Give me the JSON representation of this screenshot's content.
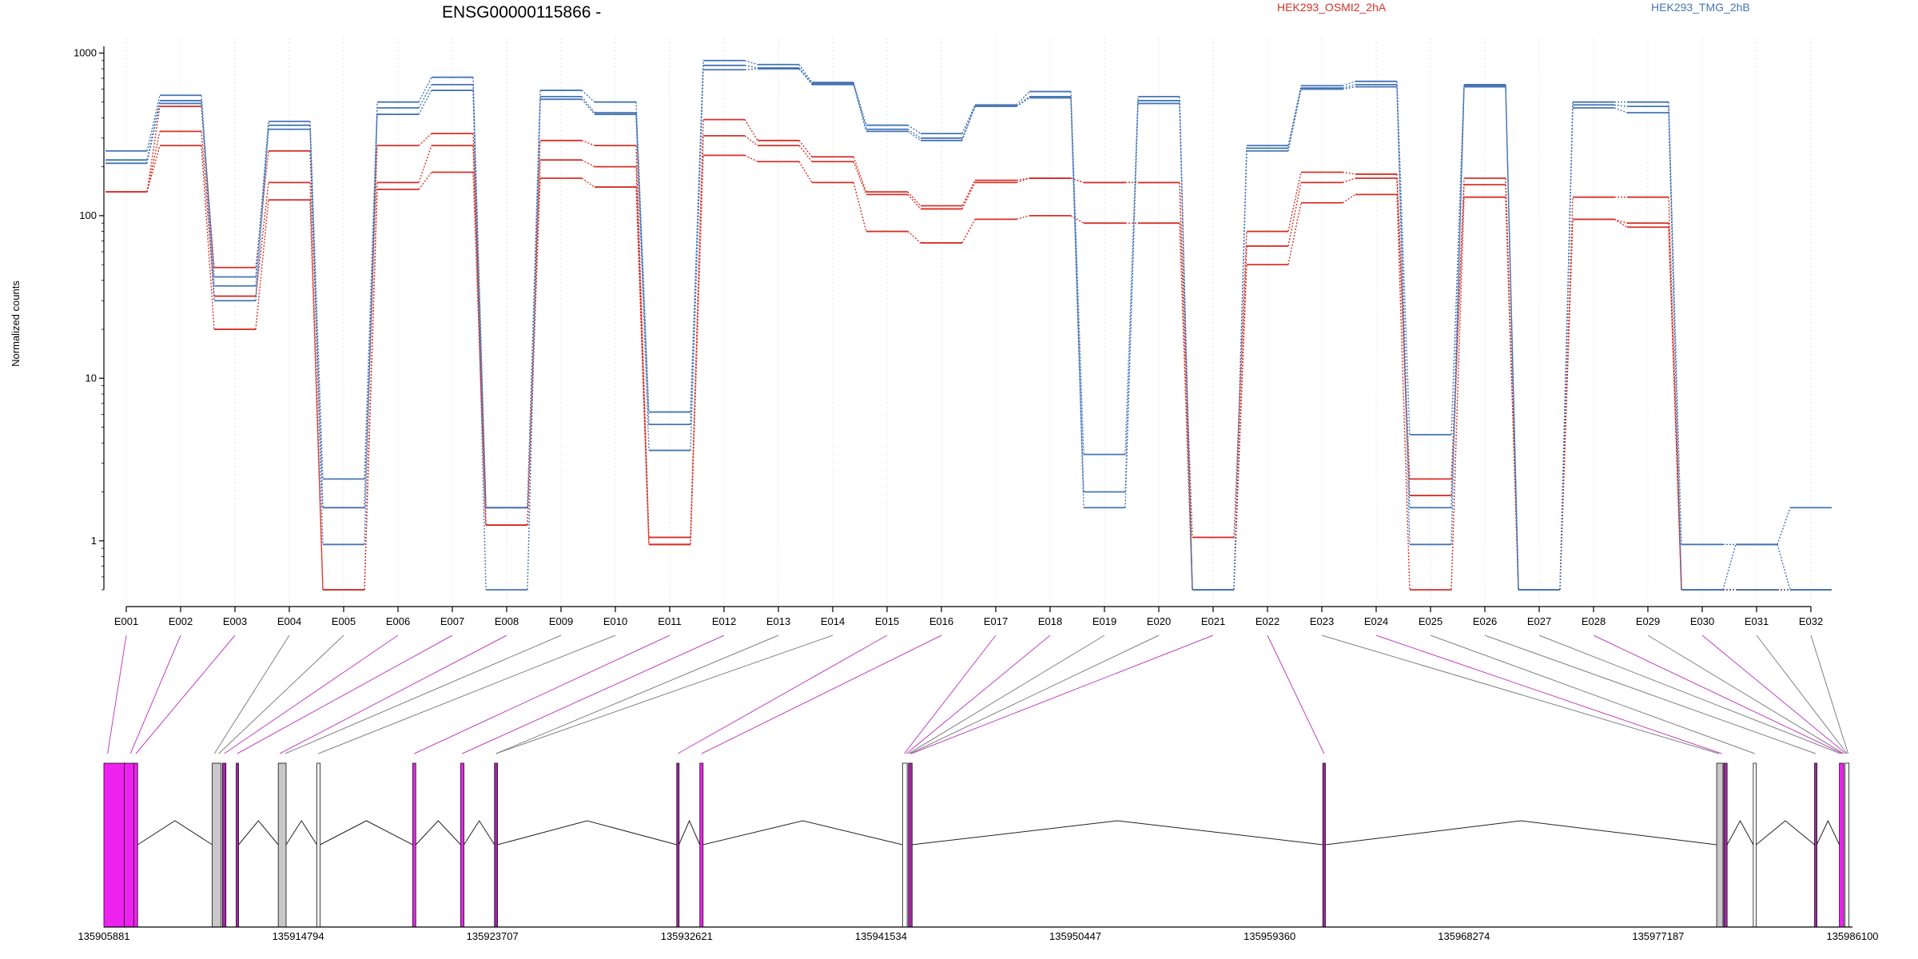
{
  "chart_data": {
    "type": "line",
    "title": "ENSG00000115866 -",
    "ylabel": "Normalized counts",
    "yscale": "log",
    "y_ticks": [
      {
        "value": 1000,
        "label": "1000"
      },
      {
        "value": 100,
        "label": "100"
      },
      {
        "value": 10,
        "label": "10"
      },
      {
        "value": 1,
        "label": "1"
      }
    ],
    "ylim": [
      0.5,
      1100
    ],
    "grid": "vertical dotted at exon centres",
    "legend_position": "top",
    "legend": [
      {
        "label": "HEK293_OSMI2_2hA",
        "color": "#d73027"
      },
      {
        "label": "HEK293_TMG_2hB",
        "color": "#4575b4"
      }
    ],
    "exons": [
      "E001",
      "E002",
      "E003",
      "E004",
      "E005",
      "E006",
      "E007",
      "E008",
      "E009",
      "E010",
      "E011",
      "E012",
      "E013",
      "E014",
      "E015",
      "E016",
      "E017",
      "E018",
      "E019",
      "E020",
      "E021",
      "E022",
      "E023",
      "E024",
      "E025",
      "E026",
      "E027",
      "E028",
      "E029",
      "E030",
      "E031",
      "E032"
    ],
    "series": [
      {
        "group": "HEK293_OSMI2_2hA",
        "color": "#d73027",
        "values": [
          140,
          470,
          48,
          250,
          1.6,
          270,
          320,
          1.6,
          290,
          270,
          1.05,
          390,
          290,
          230,
          140,
          115,
          165,
          170,
          160,
          160,
          1.05,
          80,
          185,
          180,
          2.4,
          170,
          0.5,
          130,
          130,
          0.5,
          0.5,
          0.5
        ]
      },
      {
        "group": "HEK293_OSMI2_2hA",
        "color": "#d73027",
        "values": [
          140,
          330,
          32,
          160,
          0.5,
          160,
          270,
          1.25,
          220,
          200,
          0.95,
          310,
          270,
          215,
          135,
          110,
          160,
          170,
          160,
          160,
          0.5,
          65,
          160,
          170,
          1.9,
          155,
          0.5,
          95,
          90,
          0.5,
          0.5,
          0.5
        ]
      },
      {
        "group": "HEK293_OSMI2_2hA",
        "color": "#d73027",
        "values": [
          140,
          270,
          20,
          125,
          0.5,
          145,
          185,
          1.25,
          170,
          150,
          0.95,
          235,
          215,
          160,
          80,
          68,
          95,
          100,
          90,
          90,
          0.5,
          50,
          120,
          135,
          0.5,
          130,
          0.5,
          95,
          85,
          0.5,
          0.5,
          0.5
        ]
      },
      {
        "group": "HEK293_TMG_2hB",
        "color": "#4575b4",
        "values": [
          250,
          550,
          42,
          380,
          2.4,
          500,
          710,
          1.6,
          590,
          500,
          6.2,
          900,
          850,
          660,
          360,
          320,
          480,
          580,
          3.4,
          540,
          0.5,
          270,
          630,
          670,
          4.5,
          640,
          0.5,
          500,
          500,
          0.95,
          0.95,
          1.6
        ]
      },
      {
        "group": "HEK293_TMG_2hB",
        "color": "#4575b4",
        "values": [
          220,
          510,
          37,
          360,
          1.6,
          460,
          640,
          1.6,
          540,
          430,
          5.2,
          840,
          810,
          650,
          340,
          300,
          470,
          540,
          2.0,
          510,
          0.5,
          260,
          610,
          640,
          1.6,
          630,
          0.5,
          480,
          470,
          0.5,
          0.95,
          0.5
        ]
      },
      {
        "group": "HEK293_TMG_2hB",
        "color": "#4575b4",
        "values": [
          210,
          490,
          30,
          340,
          0.95,
          420,
          590,
          0.5,
          520,
          420,
          3.6,
          790,
          800,
          640,
          330,
          290,
          470,
          530,
          1.6,
          490,
          0.5,
          250,
          600,
          620,
          0.95,
          620,
          0.5,
          460,
          430,
          0.5,
          0.5,
          0.5
        ]
      }
    ],
    "gene_model": {
      "coordinate_ticks": [
        {
          "value": 135905881,
          "label": "135905881"
        },
        {
          "value": 135914794,
          "label": "135914794"
        },
        {
          "value": 135923707,
          "label": "135923707"
        },
        {
          "value": 135932621,
          "label": "135932621"
        },
        {
          "value": 135941534,
          "label": "135941534"
        },
        {
          "value": 135950447,
          "label": "135950447"
        },
        {
          "value": 135959360,
          "label": "135959360"
        },
        {
          "value": 135968274,
          "label": "135968274"
        },
        {
          "value": 135977187,
          "label": "135977187"
        },
        {
          "value": 135986100,
          "label": "135986100"
        }
      ],
      "exon_features": [
        {
          "start": 135905881,
          "end": 135906900,
          "type": "magenta"
        },
        {
          "start": 135906820,
          "end": 135907280,
          "type": "magenta"
        },
        {
          "start": 135907250,
          "end": 135907430,
          "type": "magenta"
        },
        {
          "start": 135910850,
          "end": 135911260,
          "type": "gray"
        },
        {
          "start": 135911320,
          "end": 135911480,
          "type": "purple"
        },
        {
          "start": 135911950,
          "end": 135912060,
          "type": "purple"
        },
        {
          "start": 135913880,
          "end": 135914240,
          "type": "gray"
        },
        {
          "start": 135915650,
          "end": 135915800,
          "type": "white"
        },
        {
          "start": 135920050,
          "end": 135920190,
          "type": "magenta"
        },
        {
          "start": 135922250,
          "end": 135922400,
          "type": "magenta"
        },
        {
          "start": 135923800,
          "end": 135923940,
          "type": "purple"
        },
        {
          "start": 135932160,
          "end": 135932260,
          "type": "purple"
        },
        {
          "start": 135933220,
          "end": 135933370,
          "type": "magenta"
        },
        {
          "start": 135942520,
          "end": 135942730,
          "type": "white"
        },
        {
          "start": 135942790,
          "end": 135942960,
          "type": "purple"
        },
        {
          "start": 135961800,
          "end": 135961920,
          "type": "purple"
        },
        {
          "start": 135979870,
          "end": 135980160,
          "type": "gray"
        },
        {
          "start": 135980200,
          "end": 135980350,
          "type": "purple"
        },
        {
          "start": 135981550,
          "end": 135981680,
          "type": "white"
        },
        {
          "start": 135984360,
          "end": 135984460,
          "type": "purple"
        },
        {
          "start": 135985500,
          "end": 135985700,
          "type": "magenta"
        },
        {
          "start": 135985760,
          "end": 135985940,
          "type": "white"
        }
      ],
      "exon_anchor_positions": [
        135906050,
        135907100,
        135907350,
        135910950,
        135911150,
        135911400,
        135912000,
        135913950,
        135914200,
        135915720,
        135920120,
        135922320,
        135923870,
        135923870,
        135932210,
        135933300,
        135942600,
        135942700,
        135942800,
        135942870,
        135942920,
        135961860,
        135979970,
        135980100,
        135981620,
        135984410,
        135985550,
        135985650,
        135985700,
        135985800,
        135985850,
        135985900
      ],
      "connector_colors": [
        "#c040c0",
        "#c040c0",
        "#c040c0",
        "#808080",
        "#808080",
        "#c040c0",
        "#c040c0",
        "#c040c0",
        "#808080",
        "#808080",
        "#c040c0",
        "#c040c0",
        "#808080",
        "#808080",
        "#c040c0",
        "#c040c0",
        "#c040c0",
        "#c040c0",
        "#808080",
        "#808080",
        "#c040c0",
        "#c040c0",
        "#808080",
        "#c040c0",
        "#808080",
        "#808080",
        "#808080",
        "#c040c0",
        "#808080",
        "#c040c0",
        "#808080",
        "#808080"
      ]
    }
  }
}
